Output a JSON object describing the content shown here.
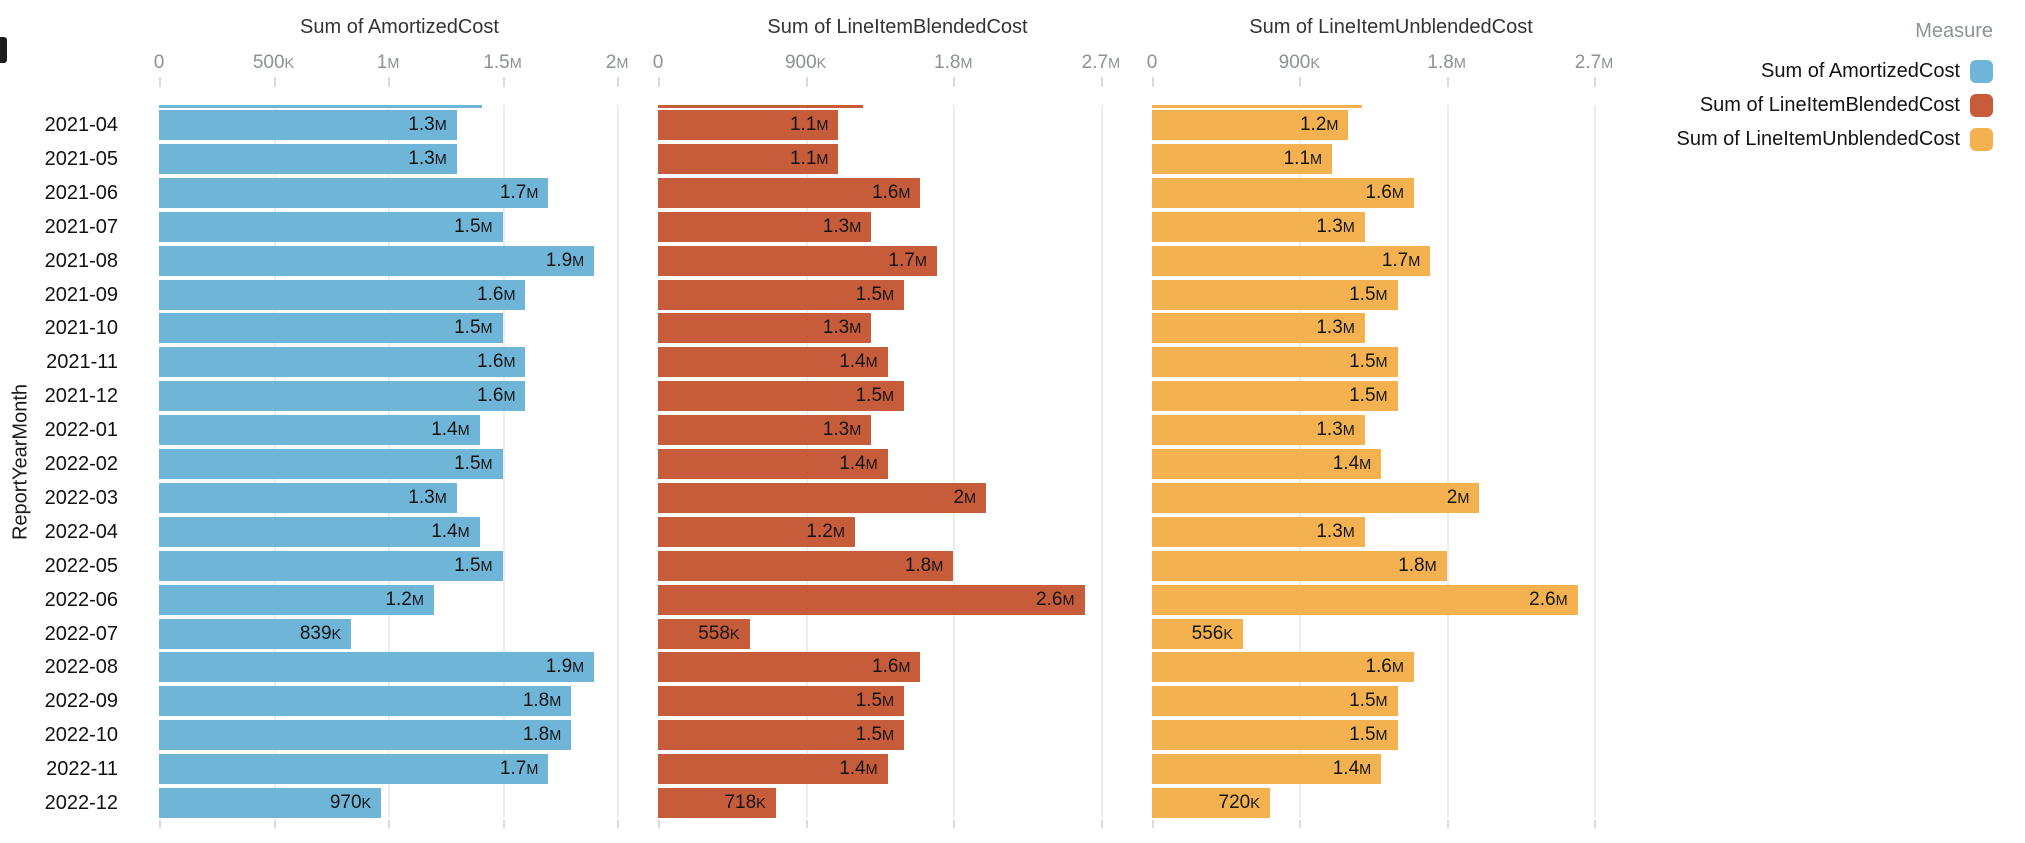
{
  "chart_data": {
    "type": "bar",
    "orientation": "horizontal",
    "title": "",
    "ylabel": "ReportYearMonth",
    "legend_title": "Measure",
    "legend_position": "top-right",
    "grid": true,
    "categories": [
      "2021-04",
      "2021-05",
      "2021-06",
      "2021-07",
      "2021-08",
      "2021-09",
      "2021-10",
      "2021-11",
      "2021-12",
      "2022-01",
      "2022-02",
      "2022-03",
      "2022-04",
      "2022-05",
      "2022-06",
      "2022-07",
      "2022-08",
      "2022-09",
      "2022-10",
      "2022-11",
      "2022-12"
    ],
    "series": [
      {
        "name": "Sum of AmortizedCost",
        "color": "#6FB5D8",
        "axis_max": 2100000,
        "ticks": [
          {
            "value": 0,
            "label": "0"
          },
          {
            "value": 500000,
            "label": "500K"
          },
          {
            "value": 1000000,
            "label": "1M"
          },
          {
            "value": 1500000,
            "label": "1.5M"
          },
          {
            "value": 2000000,
            "label": "2M"
          }
        ],
        "top_clipped_bar_value": 1410000,
        "values": [
          1300000,
          1300000,
          1700000,
          1500000,
          1900000,
          1600000,
          1500000,
          1600000,
          1600000,
          1400000,
          1500000,
          1300000,
          1400000,
          1500000,
          1200000,
          839000,
          1900000,
          1800000,
          1800000,
          1700000,
          970000
        ],
        "labels": [
          "1.3M",
          "1.3M",
          "1.7M",
          "1.5M",
          "1.9M",
          "1.6M",
          "1.5M",
          "1.6M",
          "1.6M",
          "1.4M",
          "1.5M",
          "1.3M",
          "1.4M",
          "1.5M",
          "1.2M",
          "839K",
          "1.9M",
          "1.8M",
          "1.8M",
          "1.7M",
          "970K"
        ]
      },
      {
        "name": "Sum of LineItemBlendedCost",
        "color": "#C75C3B",
        "axis_max": 2920000,
        "ticks": [
          {
            "value": 0,
            "label": "0"
          },
          {
            "value": 900000,
            "label": "900K"
          },
          {
            "value": 1800000,
            "label": "1.8M"
          },
          {
            "value": 2700000,
            "label": "2.7M"
          }
        ],
        "top_clipped_bar_value": 1250000,
        "values": [
          1100000,
          1100000,
          1600000,
          1300000,
          1700000,
          1500000,
          1300000,
          1400000,
          1500000,
          1300000,
          1400000,
          2000000,
          1200000,
          1800000,
          2600000,
          558000,
          1600000,
          1500000,
          1500000,
          1400000,
          718000
        ],
        "labels": [
          "1.1M",
          "1.1M",
          "1.6M",
          "1.3M",
          "1.7M",
          "1.5M",
          "1.3M",
          "1.4M",
          "1.5M",
          "1.3M",
          "1.4M",
          "2M",
          "1.2M",
          "1.8M",
          "2.6M",
          "558K",
          "1.6M",
          "1.5M",
          "1.5M",
          "1.4M",
          "718K"
        ]
      },
      {
        "name": "Sum of LineItemUnblendedCost",
        "color": "#F3B24F",
        "axis_max": 2920000,
        "ticks": [
          {
            "value": 0,
            "label": "0"
          },
          {
            "value": 900000,
            "label": "900K"
          },
          {
            "value": 1800000,
            "label": "1.8M"
          },
          {
            "value": 2700000,
            "label": "2.7M"
          }
        ],
        "top_clipped_bar_value": 1280000,
        "values": [
          1200000,
          1100000,
          1600000,
          1300000,
          1700000,
          1500000,
          1300000,
          1500000,
          1500000,
          1300000,
          1400000,
          2000000,
          1300000,
          1800000,
          2600000,
          556000,
          1600000,
          1500000,
          1500000,
          1400000,
          720000
        ],
        "labels": [
          "1.2M",
          "1.1M",
          "1.6M",
          "1.3M",
          "1.7M",
          "1.5M",
          "1.3M",
          "1.5M",
          "1.5M",
          "1.3M",
          "1.4M",
          "2M",
          "1.3M",
          "1.8M",
          "2.6M",
          "556K",
          "1.6M",
          "1.5M",
          "1.5M",
          "1.4M",
          "720K"
        ]
      }
    ]
  },
  "legend": {
    "title": "Measure",
    "items": [
      {
        "label": "Sum of AmortizedCost",
        "color": "#6FB5D8"
      },
      {
        "label": "Sum of LineItemBlendedCost",
        "color": "#C75C3B"
      },
      {
        "label": "Sum of LineItemUnblendedCost",
        "color": "#F3B24F"
      }
    ]
  }
}
